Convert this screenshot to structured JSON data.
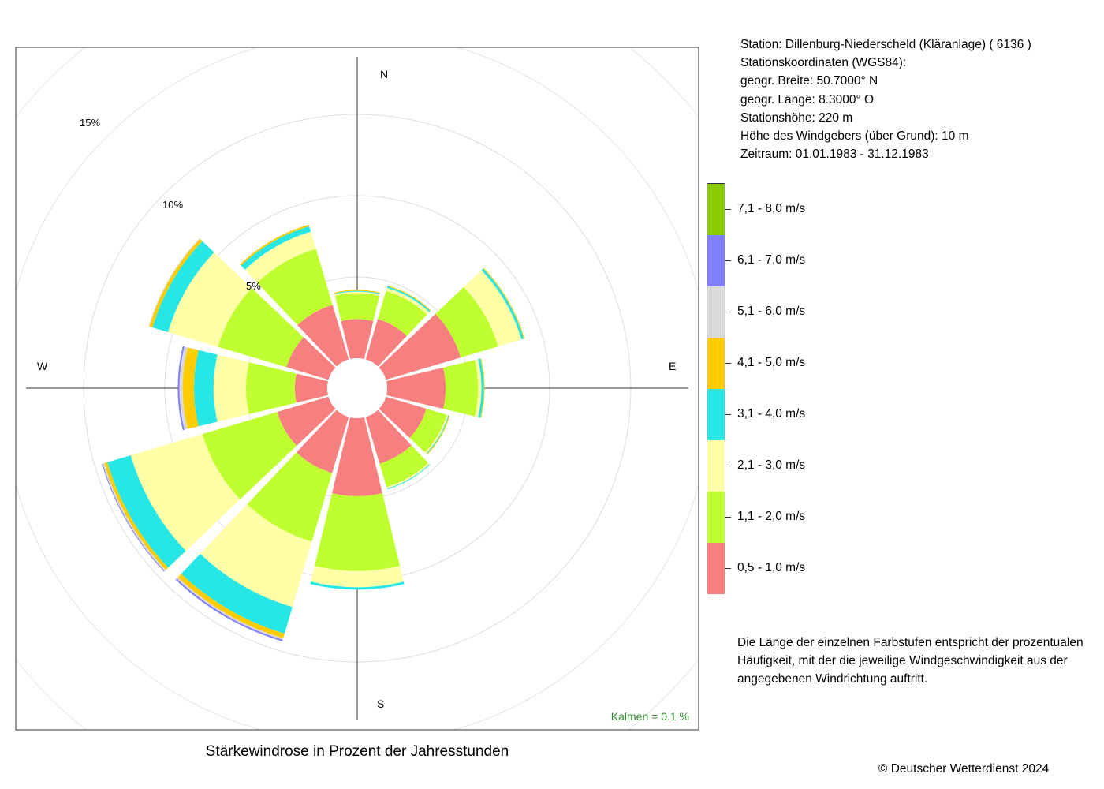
{
  "station": {
    "line1": "Station:  Dillenburg-Niederscheld (Kläranlage)  ( 6136 )",
    "line2": "Stationskoordinaten (WGS84):",
    "line3": "geogr. Breite: 50.7000° N",
    "line4": "geogr. Länge:   8.3000° O",
    "line5": "Stationshöhe: 220 m",
    "line6": "Höhe des Windgebers (über Grund): 10 m",
    "line7": "Zeitraum: 01.01.1983 - 31.12.1983"
  },
  "note": "Die Länge der einzelnen Farbstufen entspricht der prozentualen Häufigkeit, mit der die jeweilige Windgeschwindigkeit aus der angegebenen Windrichtung auftritt.",
  "copyright": "© Deutscher Wetterdienst  2024",
  "chart_data": {
    "type": "wind-rose",
    "title": "Stärkewindrose in Prozent der Jahresstunden",
    "compass_labels": [
      "N",
      "E",
      "S",
      "W"
    ],
    "ring_labels": [
      "5%",
      "10%",
      "15%"
    ],
    "rings": [
      5,
      10,
      15
    ],
    "calm_text": "Kalmen  =  0.1 %",
    "directions_deg": [
      0,
      30,
      60,
      90,
      120,
      150,
      180,
      210,
      240,
      270,
      300,
      330
    ],
    "speed_classes": [
      {
        "label": "0,5 - 1,0 m/s",
        "color": "#F87F7F"
      },
      {
        "label": "1,1 - 2,0 m/s",
        "color": "#BFFF2F"
      },
      {
        "label": "2,1 - 3,0 m/s",
        "color": "#FFFFA7"
      },
      {
        "label": "3,1 - 4,0 m/s",
        "color": "#27E6E6"
      },
      {
        "label": "4,1 - 5,0 m/s",
        "color": "#FFCC00"
      },
      {
        "label": "5,1 - 6,0 m/s",
        "color": "#D9D9D9"
      },
      {
        "label": "6,1 - 7,0 m/s",
        "color": "#7F7FFF"
      },
      {
        "label": "7,1 - 8,0 m/s",
        "color": "#8CCC00"
      }
    ],
    "series": [
      {
        "values": [
          2.4,
          2.6,
          4.8,
          3.6,
          2.6,
          3.0,
          4.8,
          3.6,
          3.3,
          2.0,
          2.7,
          3.5
        ]
      },
      {
        "values": [
          1.6,
          1.8,
          2.4,
          2.0,
          1.3,
          1.5,
          4.6,
          4.4,
          4.8,
          3.0,
          4.4,
          3.6
        ]
      },
      {
        "values": [
          0.1,
          0.2,
          1.5,
          0.2,
          0.1,
          0.1,
          1.0,
          4.2,
          4.6,
          2.0,
          3.2,
          1.1
        ]
      },
      {
        "values": [
          0.05,
          0.1,
          0.15,
          0.15,
          0.05,
          0.05,
          0.15,
          1.7,
          1.5,
          1.2,
          1.0,
          0.35
        ]
      },
      {
        "values": [
          0.05,
          0.05,
          0.05,
          0.05,
          0.05,
          0.0,
          0.0,
          0.3,
          0.2,
          0.7,
          0.2,
          0.1
        ]
      },
      {
        "values": [
          0.0,
          0.0,
          0.0,
          0.0,
          0.0,
          0.0,
          0.0,
          0.1,
          0.1,
          0.2,
          0.05,
          0.0
        ]
      },
      {
        "values": [
          0.0,
          0.0,
          0.0,
          0.0,
          0.0,
          0.0,
          0.0,
          0.1,
          0.05,
          0.1,
          0.0,
          0.0
        ]
      },
      {
        "values": [
          0.0,
          0.0,
          0.0,
          0.0,
          0.0,
          0.0,
          0.0,
          0.0,
          0.0,
          0.0,
          0.0,
          0.0
        ]
      }
    ]
  }
}
